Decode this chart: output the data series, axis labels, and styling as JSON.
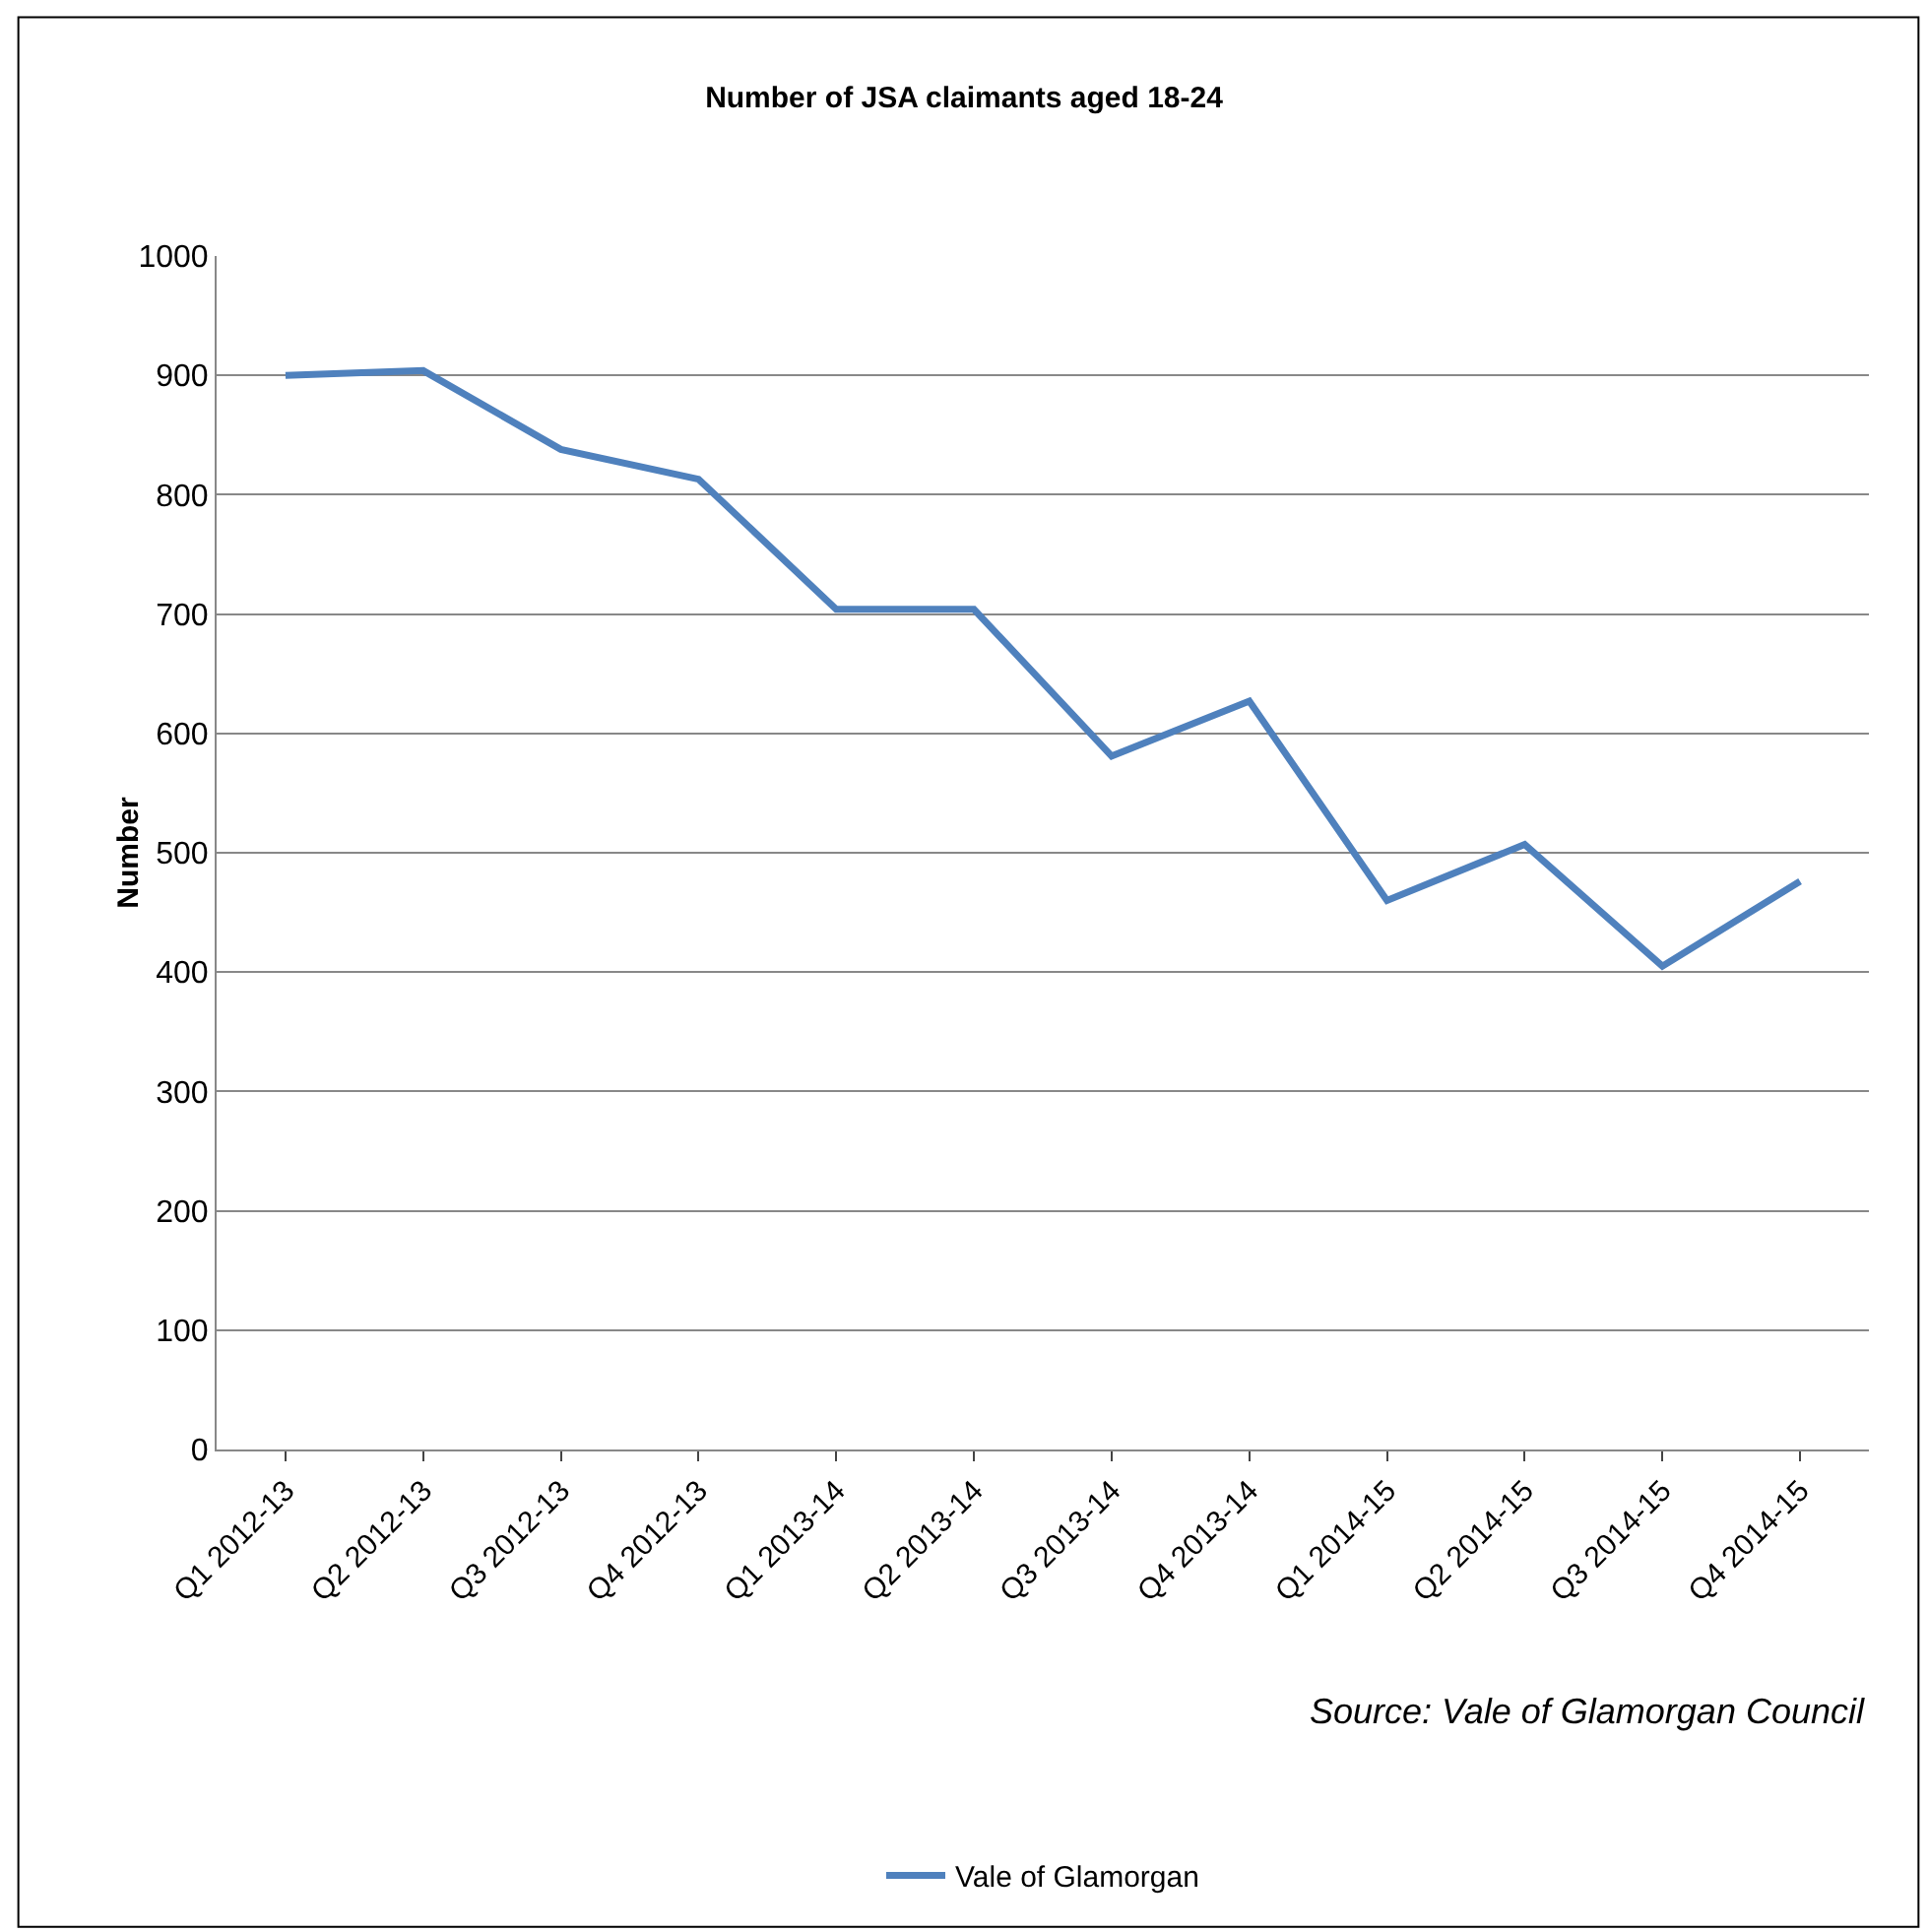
{
  "chart_data": {
    "type": "line",
    "title": "Number of JSA claimants aged 18-24",
    "ylabel": "Number",
    "categories": [
      "Q1 2012-13",
      "Q2 2012-13",
      "Q3 2012-13",
      "Q4 2012-13",
      "Q1 2013-14",
      "Q2 2013-14",
      "Q3 2013-14",
      "Q4 2013-14",
      "Q1 2014-15",
      "Q2 2014-15",
      "Q3 2014-15",
      "Q4 2014-15"
    ],
    "series": [
      {
        "name": "Vale of Glamorgan",
        "color": "#4f81bd",
        "values": [
          900,
          904,
          838,
          813,
          704,
          704,
          581,
          627,
          460,
          507,
          405,
          476
        ]
      }
    ],
    "ylim": [
      0,
      1000
    ],
    "yticks": [
      0,
      100,
      200,
      300,
      400,
      500,
      600,
      700,
      800,
      900,
      1000
    ],
    "grid": "y",
    "legend": "bottom",
    "marker": "none",
    "line_style": "solid",
    "annotations": [
      "Source: Vale of Glamorgan Council"
    ]
  }
}
